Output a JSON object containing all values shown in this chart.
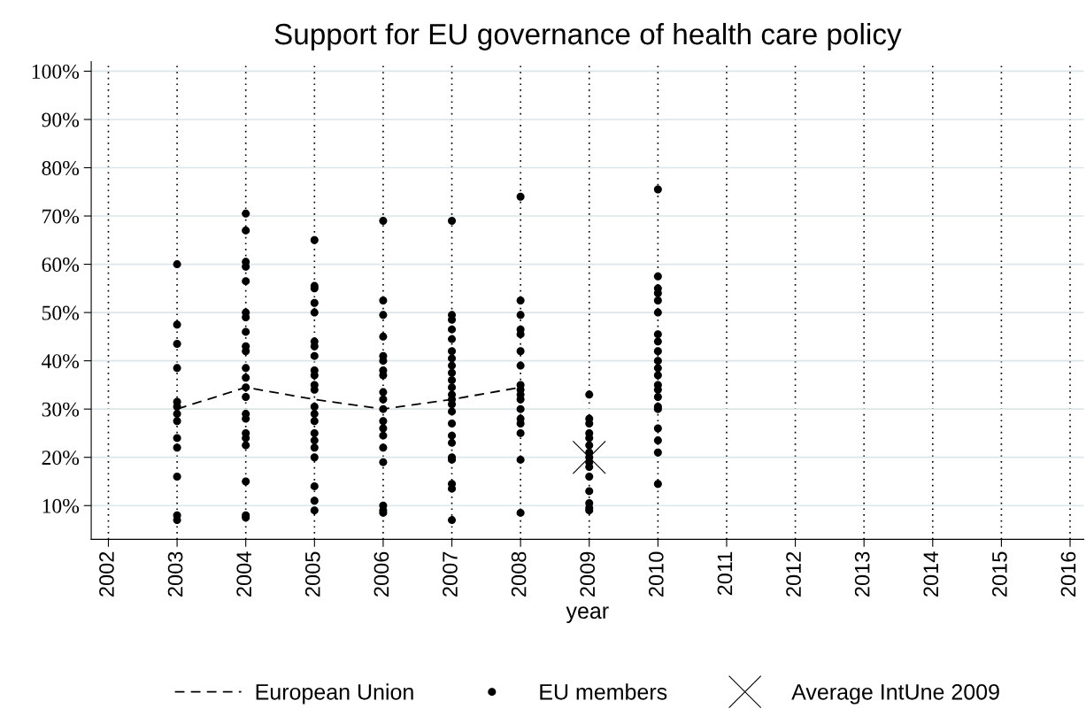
{
  "chart_data": {
    "type": "scatter",
    "title": "Support for EU governance of health care policy",
    "xlabel": "year",
    "xlim": [
      2001.75,
      2016.2
    ],
    "xticks": [
      2002,
      2003,
      2004,
      2005,
      2006,
      2007,
      2008,
      2009,
      2010,
      2011,
      2012,
      2013,
      2014,
      2015,
      2016
    ],
    "ylim": [
      3,
      102
    ],
    "yticks": [
      {
        "value": 10,
        "label": "10%"
      },
      {
        "value": 20,
        "label": "20%"
      },
      {
        "value": 30,
        "label": "30%"
      },
      {
        "value": 40,
        "label": "40%"
      },
      {
        "value": 50,
        "label": "50%"
      },
      {
        "value": 60,
        "label": "60%"
      },
      {
        "value": 70,
        "label": "70%"
      },
      {
        "value": 80,
        "label": "80%"
      },
      {
        "value": 90,
        "label": "90%"
      },
      {
        "value": 100,
        "label": "100%"
      }
    ],
    "grid": true,
    "legend": "bottom",
    "series": [
      {
        "name": "European Union",
        "type": "line",
        "line_style": "dashed",
        "marker": "none",
        "color": "#000000",
        "x": [
          2003,
          2004,
          2005,
          2006,
          2007,
          2008
        ],
        "values": [
          30,
          34.5,
          32,
          30,
          32,
          34.5
        ]
      },
      {
        "name": "EU members",
        "marker": "circle",
        "color": "#000000",
        "x": [
          2003,
          2003,
          2003,
          2003,
          2003,
          2003,
          2003,
          2003,
          2003,
          2003,
          2003,
          2003,
          2003,
          2004,
          2004,
          2004,
          2004,
          2004,
          2004,
          2004,
          2004,
          2004,
          2004,
          2004,
          2004,
          2004,
          2004,
          2004,
          2004,
          2004,
          2004,
          2004,
          2004,
          2004,
          2004,
          2005,
          2005,
          2005,
          2005,
          2005,
          2005,
          2005,
          2005,
          2005,
          2005,
          2005,
          2005,
          2005,
          2005,
          2005,
          2005,
          2005,
          2005,
          2005,
          2005,
          2005,
          2005,
          2006,
          2006,
          2006,
          2006,
          2006,
          2006,
          2006,
          2006,
          2006,
          2006,
          2006,
          2006,
          2006,
          2006,
          2006,
          2006,
          2006,
          2006,
          2006,
          2007,
          2007,
          2007,
          2007,
          2007,
          2007,
          2007,
          2007,
          2007,
          2007,
          2007,
          2007,
          2007,
          2007,
          2007,
          2007,
          2007,
          2007,
          2007,
          2007,
          2007,
          2007,
          2007,
          2008,
          2008,
          2008,
          2008,
          2008,
          2008,
          2008,
          2008,
          2008,
          2008,
          2008,
          2008,
          2008,
          2008,
          2008,
          2008,
          2008,
          2009,
          2009,
          2009,
          2009,
          2009,
          2009,
          2009,
          2009,
          2009,
          2009,
          2009,
          2009,
          2009,
          2009,
          2009,
          2010,
          2010,
          2010,
          2010,
          2010,
          2010,
          2010,
          2010,
          2010,
          2010,
          2010,
          2010,
          2010,
          2010,
          2010,
          2010,
          2010,
          2010,
          2010,
          2010,
          2010
        ],
        "values": [
          60,
          47.5,
          43.5,
          38.5,
          31.5,
          30.5,
          29,
          27.5,
          24,
          22,
          16,
          8,
          7,
          70.5,
          67,
          60.5,
          59.5,
          56.5,
          50,
          49,
          46,
          43,
          42,
          38.5,
          36.5,
          34.5,
          32.5,
          29,
          28,
          25,
          24,
          22.5,
          15,
          8,
          7.5,
          65,
          55.5,
          55,
          52,
          50,
          44,
          43,
          41,
          38,
          37,
          35,
          34,
          30.5,
          29,
          27.5,
          25,
          23.5,
          22,
          20,
          14,
          11,
          9,
          69,
          52.5,
          49.5,
          45,
          41,
          40,
          38,
          37,
          33.5,
          32,
          30,
          27.5,
          26,
          24.5,
          22,
          19,
          10,
          9,
          8.5,
          69,
          49.5,
          48.5,
          46.5,
          44.5,
          42,
          40.5,
          39,
          37.5,
          36,
          34.5,
          33,
          32,
          31,
          29.5,
          27,
          24.5,
          23,
          20,
          19.5,
          14.5,
          13.5,
          7,
          74,
          52.5,
          49.5,
          46.5,
          45.5,
          42,
          39,
          35,
          34,
          33,
          32,
          30,
          28,
          27,
          25,
          19.5,
          8.5,
          33,
          28,
          27,
          25,
          24,
          22.5,
          21,
          20,
          19,
          18,
          16,
          13,
          10.5,
          9.5,
          9,
          75.5,
          57.5,
          55,
          54,
          52.5,
          50,
          45.5,
          44,
          42,
          40,
          38.5,
          37,
          35,
          34,
          32.5,
          30.5,
          30,
          26,
          23.5,
          21,
          14.5
        ]
      },
      {
        "name": "Average IntUne 2009",
        "type": "scatter",
        "marker": "cross",
        "color": "#000000",
        "x": [
          2009
        ],
        "values": [
          20
        ]
      }
    ]
  }
}
